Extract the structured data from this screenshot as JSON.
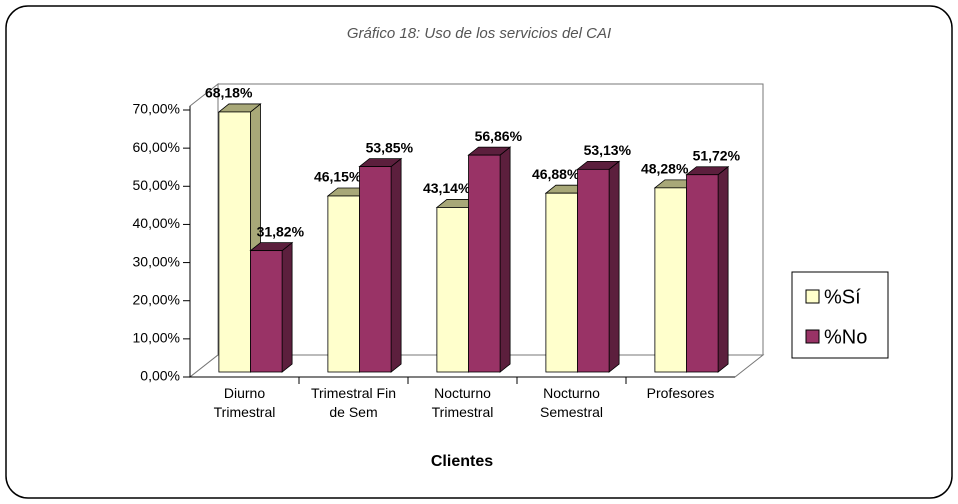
{
  "chart_data": {
    "type": "bar3d",
    "title": "Gráfico 18: Uso de los servicios del CAI",
    "x_label": "Clientes",
    "categories": [
      "Diurno Trimestral",
      "Trimestral Fin de Sem",
      "Nocturno Trimestral",
      "Nocturno Semestral",
      "Profesores"
    ],
    "series": [
      {
        "name": "%Sí",
        "color": "#ffffcc",
        "side_color": "#a8a878",
        "values": [
          68.18,
          46.15,
          43.14,
          46.88,
          48.28
        ],
        "value_labels": [
          "68,18%",
          "46,15%",
          "43,14%",
          "46,88%",
          "48,28%"
        ]
      },
      {
        "name": "%No",
        "color": "#993366",
        "side_color": "#5c1f3d",
        "values": [
          31.82,
          53.85,
          56.86,
          53.13,
          51.72
        ],
        "value_labels": [
          "31,82%",
          "53,85%",
          "56,86%",
          "53,13%",
          "51,72%"
        ]
      }
    ],
    "ylim": [
      0,
      70
    ],
    "yticks": [
      {
        "value": 0,
        "label": "0,00%"
      },
      {
        "value": 10,
        "label": "10,00%"
      },
      {
        "value": 20,
        "label": "20,00%"
      },
      {
        "value": 30,
        "label": "30,00%"
      },
      {
        "value": 40,
        "label": "40,00%"
      },
      {
        "value": 50,
        "label": "50,00%"
      },
      {
        "value": 60,
        "label": "60,00%"
      },
      {
        "value": 70,
        "label": "70,00%"
      }
    ],
    "grid": false,
    "legend": "right"
  }
}
